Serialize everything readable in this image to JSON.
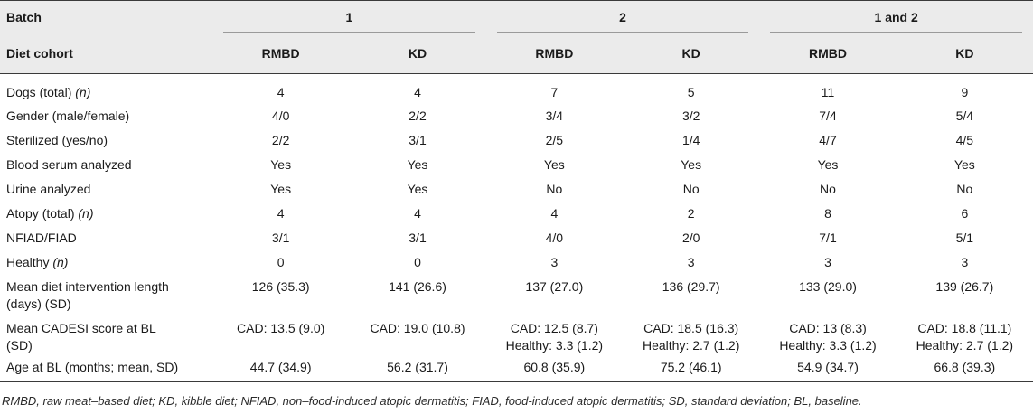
{
  "header": {
    "batch_label": "Batch",
    "cohort_label": "Diet cohort",
    "groups": [
      "1",
      "2",
      "1 and 2"
    ],
    "subcols": [
      "RMBD",
      "KD",
      "RMBD",
      "KD",
      "RMBD",
      "KD"
    ]
  },
  "rows": [
    {
      "label": "Dogs (total) ",
      "label_suffix": "(n)",
      "values": [
        "4",
        "4",
        "7",
        "5",
        "11",
        "9"
      ]
    },
    {
      "label": "Gender (male/female)",
      "values": [
        "4/0",
        "2/2",
        "3/4",
        "3/2",
        "7/4",
        "5/4"
      ]
    },
    {
      "label": "Sterilized (yes/no)",
      "values": [
        "2/2",
        "3/1",
        "2/5",
        "1/4",
        "4/7",
        "4/5"
      ]
    },
    {
      "label": "Blood serum analyzed",
      "values": [
        "Yes",
        "Yes",
        "Yes",
        "Yes",
        "Yes",
        "Yes"
      ]
    },
    {
      "label": "Urine analyzed",
      "values": [
        "Yes",
        "Yes",
        "No",
        "No",
        "No",
        "No"
      ]
    },
    {
      "label": "Atopy (total) ",
      "label_suffix": "(n)",
      "values": [
        "4",
        "4",
        "4",
        "2",
        "8",
        "6"
      ]
    },
    {
      "label": "NFIAD/FIAD",
      "values": [
        "3/1",
        "3/1",
        "4/0",
        "2/0",
        "7/1",
        "5/1"
      ]
    },
    {
      "label": "Healthy ",
      "label_suffix": "(n)",
      "values": [
        "0",
        "0",
        "3",
        "3",
        "3",
        "3"
      ]
    },
    {
      "label_line1": "Mean diet intervention length",
      "label_line2": "(days) (SD)",
      "values": [
        "126 (35.3)",
        "141 (26.6)",
        "137 (27.0)",
        "136 (29.7)",
        "133 (29.0)",
        "139 (26.7)"
      ]
    },
    {
      "label_line1": "Mean CADESI score at BL",
      "label_line2": "(SD)",
      "values_line1": [
        "CAD: 13.5 (9.0)",
        "CAD: 19.0 (10.8)",
        "CAD: 12.5 (8.7)",
        "CAD: 18.5 (16.3)",
        "CAD: 13 (8.3)",
        "CAD: 18.8 (11.1)"
      ],
      "values_line2": [
        "",
        "",
        "Healthy: 3.3 (1.2)",
        "Healthy: 2.7 (1.2)",
        "Healthy: 3.3 (1.2)",
        "Healthy: 2.7 (1.2)"
      ]
    },
    {
      "label": "Age at BL (months; mean, SD)",
      "values": [
        "44.7 (34.9)",
        "56.2 (31.7)",
        "60.8 (35.9)",
        "75.2 (46.1)",
        "54.9 (34.7)",
        "66.8 (39.3)"
      ]
    }
  ],
  "footnote": "RMBD, raw meat–based diet; KD, kibble diet; NFIAD, non–food-induced atopic dermatitis; FIAD, food-induced atopic dermatitis; SD, standard deviation; BL, baseline."
}
